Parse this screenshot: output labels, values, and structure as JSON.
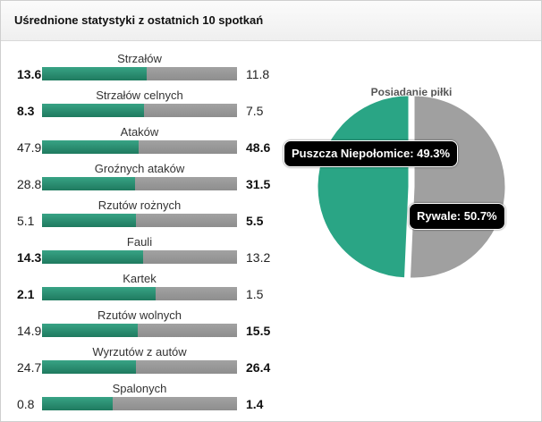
{
  "header": {
    "title": "Uśrednione statystyki z ostatnich 10 spotkań"
  },
  "stats": [
    {
      "label": "Strzałów",
      "home": "13.6",
      "away": "11.8",
      "home_share": 0.535,
      "bold": "home"
    },
    {
      "label": "Strzałów celnych",
      "home": "8.3",
      "away": "7.5",
      "home_share": 0.525,
      "bold": "home"
    },
    {
      "label": "Ataków",
      "home": "47.9",
      "away": "48.6",
      "home_share": 0.496,
      "bold": "away"
    },
    {
      "label": "Groźnych ataków",
      "home": "28.8",
      "away": "31.5",
      "home_share": 0.478,
      "bold": "away"
    },
    {
      "label": "Rzutów rożnych",
      "home": "5.1",
      "away": "5.5",
      "home_share": 0.481,
      "bold": "away"
    },
    {
      "label": "Fauli",
      "home": "14.3",
      "away": "13.2",
      "home_share": 0.52,
      "bold": "home"
    },
    {
      "label": "Kartek",
      "home": "2.1",
      "away": "1.5",
      "home_share": 0.583,
      "bold": "home"
    },
    {
      "label": "Rzutów wolnych",
      "home": "14.9",
      "away": "15.5",
      "home_share": 0.49,
      "bold": "away"
    },
    {
      "label": "Wyrzutów z autów",
      "home": "24.7",
      "away": "26.4",
      "home_share": 0.483,
      "bold": "away"
    },
    {
      "label": "Spalonych",
      "home": "0.8",
      "away": "1.4",
      "home_share": 0.364,
      "bold": "away"
    }
  ],
  "colors": {
    "home": "#2aa585",
    "away": "#a0a0a0",
    "bar_home": "#2a8c6e",
    "bar_away": "#999999"
  },
  "chart_data": {
    "type": "pie",
    "title": "Posiadanie piłki",
    "slices": [
      {
        "name": "Puszcza Niepołomice",
        "value": 49.3,
        "label": "Puszcza Niepołomice: 49.3%"
      },
      {
        "name": "Rywale",
        "value": 50.7,
        "label": "Rywale: 50.7%"
      }
    ]
  }
}
